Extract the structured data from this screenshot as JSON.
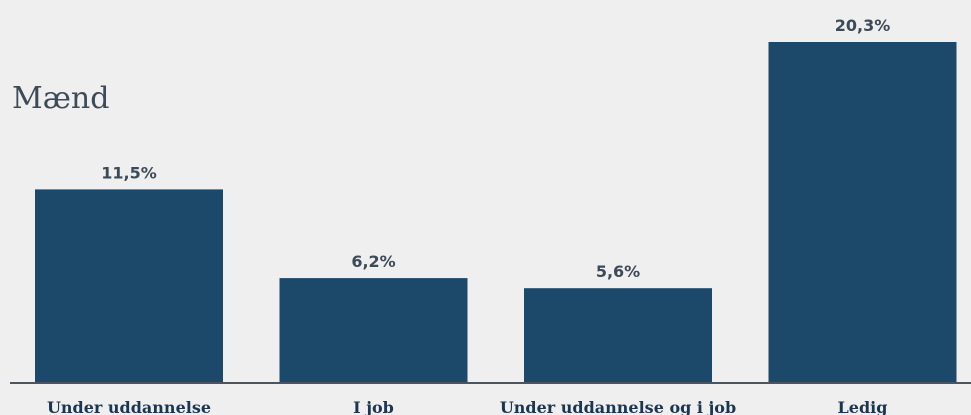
{
  "chart_data": {
    "type": "bar",
    "title": "Mænd",
    "categories": [
      "Under uddannelse",
      "I job",
      "Under uddannelse og i job",
      "Ledig"
    ],
    "values": [
      11.5,
      6.2,
      5.6,
      20.3
    ],
    "data_labels": [
      "11,5%",
      "6,2%",
      "5,6%",
      "20,3%"
    ],
    "xlabel": "",
    "ylabel": "",
    "ylim": [
      0,
      21
    ],
    "grid": false,
    "legend": "none",
    "colors": {
      "bar": "#1c4869",
      "data_label": "#3d4a57",
      "category_label": "#1c3550",
      "title": "#3d4a57",
      "axis": "#4a5561",
      "background": "#efefef"
    }
  }
}
